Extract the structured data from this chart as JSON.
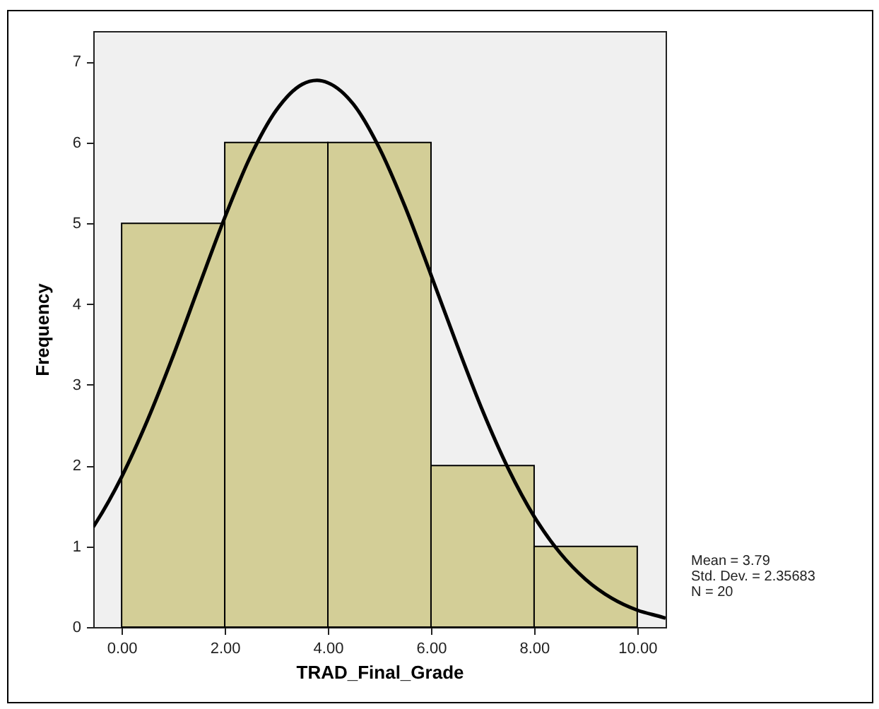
{
  "chart_data": {
    "type": "histogram",
    "xlabel": "TRAD_Final_Grade",
    "ylabel": "Frequency",
    "bins": [
      0,
      2,
      4,
      6,
      8,
      10
    ],
    "values": [
      5,
      6,
      6,
      2,
      1
    ],
    "color": "#d3ce97",
    "series": [
      {
        "type": "line",
        "color": "#000000",
        "x": [
          -0.55,
          -0.5,
          0,
          0.5,
          1,
          1.5,
          2,
          2.5,
          3,
          3.5,
          3.79,
          4,
          4.5,
          5,
          5.5,
          6,
          6.5,
          7,
          7.5,
          8,
          8.5,
          9,
          9.5,
          10,
          10.5,
          10.55
        ],
        "values": [
          1.24,
          1.29,
          1.86,
          2.56,
          3.36,
          4.22,
          5.07,
          5.83,
          6.4,
          6.72,
          6.77,
          6.74,
          6.47,
          5.93,
          5.2,
          4.36,
          3.5,
          2.68,
          1.96,
          1.37,
          0.92,
          0.59,
          0.36,
          0.21,
          0.12,
          0.11
        ]
      }
    ],
    "xlim": [
      -0.55,
      10.55
    ],
    "xticks": [
      {
        "value": 0,
        "label": "0.00"
      },
      {
        "value": 2,
        "label": "2.00"
      },
      {
        "value": 4,
        "label": "4.00"
      },
      {
        "value": 6,
        "label": "6.00"
      },
      {
        "value": 8,
        "label": "8.00"
      },
      {
        "value": 10,
        "label": "10.00"
      }
    ],
    "ylim": [
      0,
      7.38
    ],
    "yticks": [
      0,
      1,
      2,
      3,
      4,
      5,
      6,
      7
    ],
    "grid": false,
    "marker": "none",
    "annotations": [
      "Mean = 3.79",
      "Std. Dev. = 2.35683",
      "N = 20"
    ]
  }
}
